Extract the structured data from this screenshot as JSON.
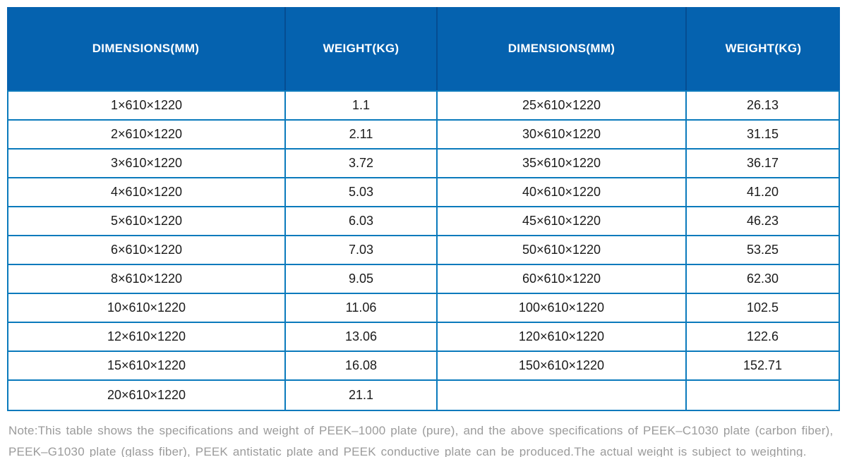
{
  "table": {
    "headers": [
      "DIMENSIONS(MM)",
      "WEIGHT(KG)",
      "DIMENSIONS(MM)",
      "WEIGHT(KG)"
    ],
    "rows": [
      [
        "1×610×1220",
        "1.1",
        "25×610×1220",
        "26.13"
      ],
      [
        "2×610×1220",
        "2.11",
        "30×610×1220",
        "31.15"
      ],
      [
        "3×610×1220",
        "3.72",
        "35×610×1220",
        "36.17"
      ],
      [
        "4×610×1220",
        "5.03",
        "40×610×1220",
        "41.20"
      ],
      [
        "5×610×1220",
        "6.03",
        "45×610×1220",
        "46.23"
      ],
      [
        "6×610×1220",
        "7.03",
        "50×610×1220",
        "53.25"
      ],
      [
        "8×610×1220",
        "9.05",
        "60×610×1220",
        "62.30"
      ],
      [
        "10×610×1220",
        "11.06",
        "100×610×1220",
        "102.5"
      ],
      [
        "12×610×1220",
        "13.06",
        "120×610×1220",
        "122.6"
      ],
      [
        "15×610×1220",
        "16.08",
        "150×610×1220",
        "152.71"
      ],
      [
        "20×610×1220",
        "21.1",
        "",
        ""
      ]
    ]
  },
  "note": {
    "text": "Note:This table shows the specifications and weight of PEEK–1000 plate (pure), and the above specifications of PEEK–C1030 plate (carbon fiber), PEEK–G1030 plate (glass fiber), PEEK antistatic plate and PEEK conductive plate can be produced.The actual weight is subject to weighting."
  },
  "colors": {
    "page_bg": "#ffffff",
    "header_bg": "#0562af",
    "header_divider": "#054d92",
    "header_text": "#ffffff",
    "body_border": "#0a7abc",
    "body_text": "#1b1b1b",
    "note_text": "#9b9b9b"
  }
}
